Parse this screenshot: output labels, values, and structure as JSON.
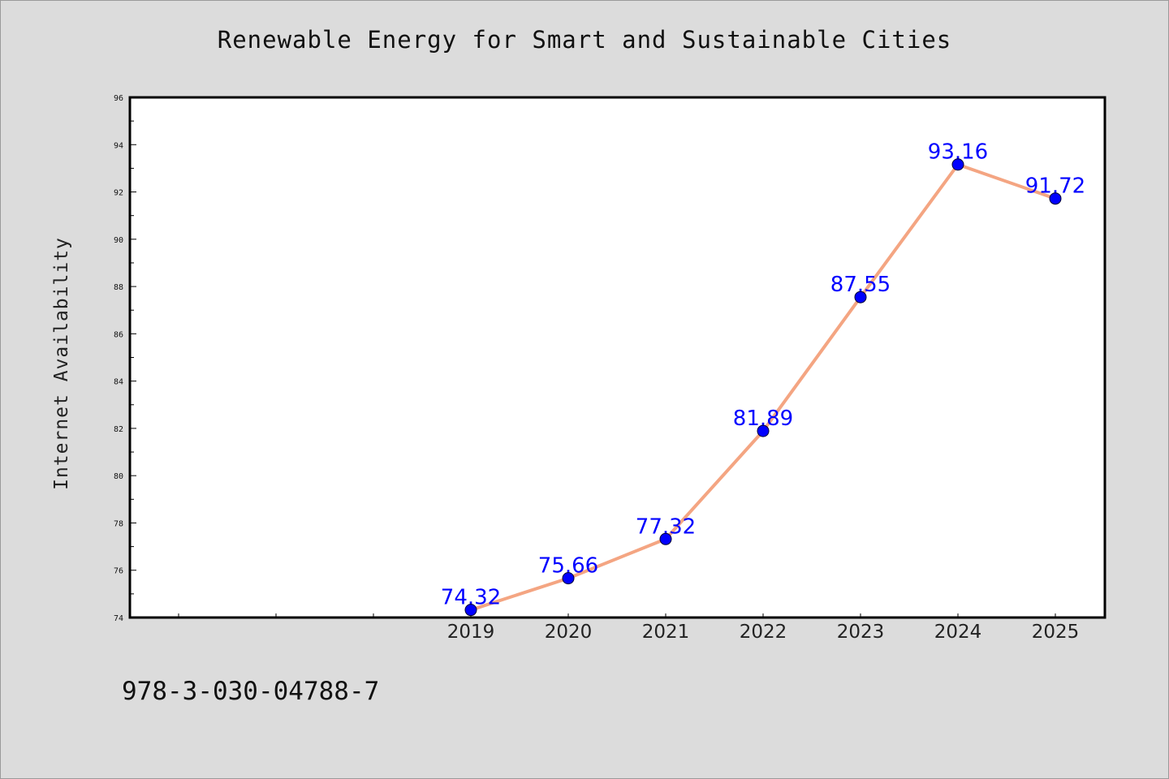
{
  "chart_data": {
    "type": "line",
    "title": "Renewable Energy for Smart and Sustainable Cities",
    "xlabel": "",
    "ylabel": "Internet Availability",
    "categories": [
      "2019",
      "2020",
      "2021",
      "2022",
      "2023",
      "2024",
      "2025"
    ],
    "x_slots": 10,
    "first_category_slot": 3,
    "ylim": [
      74,
      96
    ],
    "yticks": [
      74,
      76,
      78,
      80,
      82,
      84,
      86,
      88,
      90,
      92,
      94,
      96
    ],
    "series": [
      {
        "values": [
          74.32,
          75.66,
          77.32,
          81.89,
          87.55,
          93.16,
          91.72
        ],
        "labels": [
          "74.32",
          "75.66",
          "77.32",
          "81.89",
          "87.55",
          "93.16",
          "91.72"
        ],
        "line_color": "#f4a582",
        "marker_color": "#0000ff",
        "label_color": "#0000ff"
      }
    ],
    "grid": false,
    "legend": "none"
  },
  "footer": {
    "isbn": "978-3-030-04788-7"
  }
}
